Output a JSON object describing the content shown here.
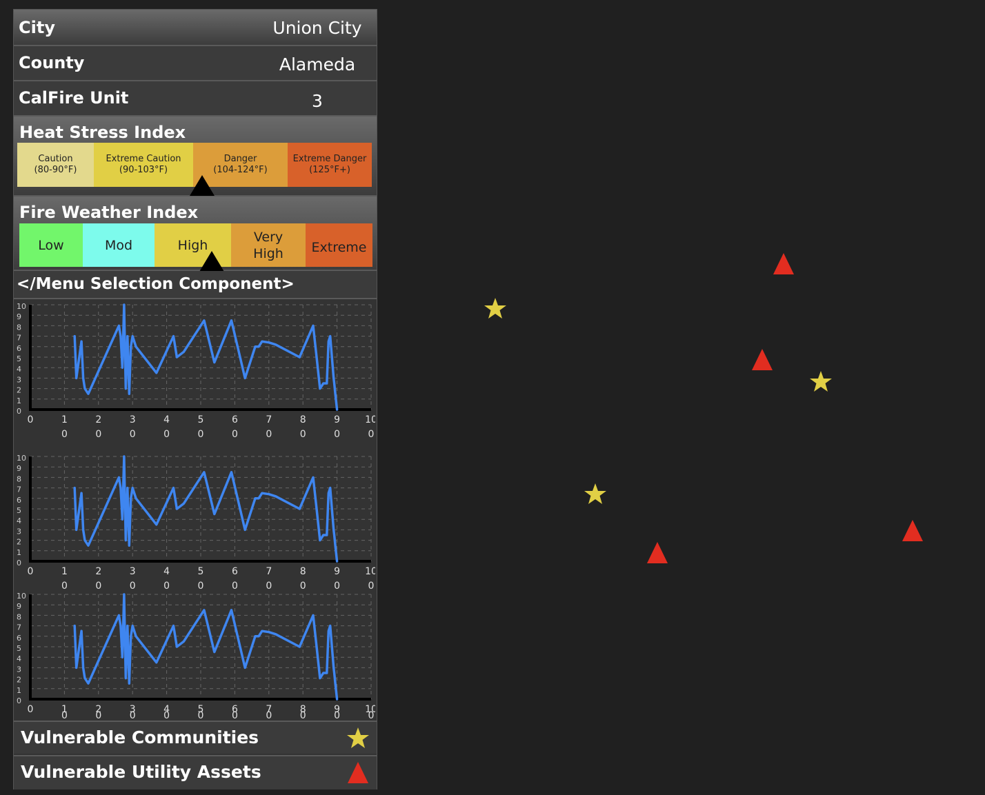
{
  "info": {
    "city_label": "City",
    "city_value": "Union City",
    "county_label": "County",
    "county_value": "Alameda",
    "unit_label": "CalFire Unit",
    "unit_value": "3"
  },
  "heat_stress": {
    "title": "Heat Stress Index",
    "segments": [
      {
        "label": "Caution",
        "range": "(80-90°F)",
        "color": "#e3d98d"
      },
      {
        "label": "Extreme Caution",
        "range": "(90-103°F)",
        "color": "#e1cf45"
      },
      {
        "label": "Danger",
        "range": "(104-124°F)",
        "color": "#dc9d3a"
      },
      {
        "label": "Extreme Danger",
        "range": "(125°F+)",
        "color": "#d8612a"
      }
    ],
    "indicator_level": "Danger"
  },
  "fire_weather": {
    "title": "Fire Weather Index",
    "segments": [
      {
        "label": "Low",
        "color": "#72f66b"
      },
      {
        "label": "Mod",
        "color": "#7dfbec"
      },
      {
        "label": "High",
        "color": "#e1cf45"
      },
      {
        "label": "Very High",
        "color": "#dc9d3a"
      },
      {
        "label": "Extreme",
        "color": "#d8612a"
      }
    ],
    "indicator_level": "High"
  },
  "menu": {
    "title": "</Menu Selection Component>"
  },
  "chart_data": [
    {
      "type": "line",
      "x": [
        13,
        13.5,
        15,
        15.5,
        16,
        17,
        26,
        26.5,
        27,
        27.5,
        28,
        28.5,
        29,
        29.5,
        30,
        31,
        37,
        42,
        43,
        45,
        51,
        54,
        59,
        63,
        66,
        67,
        68,
        70,
        72,
        79,
        83,
        84,
        85,
        86,
        87,
        87.5,
        88,
        89,
        89.2,
        89.5,
        90
      ],
      "y": [
        70,
        30,
        65,
        30,
        20,
        15,
        80,
        70,
        40,
        100,
        20,
        70,
        15,
        60,
        70,
        60,
        35,
        70,
        50,
        55,
        85,
        45,
        85,
        30,
        60,
        60,
        65,
        64,
        62,
        50,
        80,
        50,
        20,
        25,
        25,
        65,
        70,
        30,
        25,
        15,
        0
      ],
      "xlim": [
        0,
        100
      ],
      "ylim": [
        0,
        100
      ],
      "color": "#3f86f0",
      "grid": true
    },
    {
      "type": "line",
      "x": [
        13,
        13.5,
        15,
        15.5,
        16,
        17,
        26,
        26.5,
        27,
        27.5,
        28,
        28.5,
        29,
        29.5,
        30,
        31,
        37,
        42,
        43,
        45,
        51,
        54,
        59,
        63,
        66,
        67,
        68,
        70,
        72,
        79,
        83,
        84,
        85,
        86,
        87,
        87.5,
        88,
        89,
        89.2,
        89.5,
        90
      ],
      "y": [
        70,
        30,
        65,
        30,
        20,
        15,
        80,
        70,
        40,
        100,
        20,
        70,
        15,
        60,
        70,
        60,
        35,
        70,
        50,
        55,
        85,
        45,
        85,
        30,
        60,
        60,
        65,
        64,
        62,
        50,
        80,
        50,
        20,
        25,
        25,
        65,
        70,
        30,
        25,
        15,
        0
      ],
      "xlim": [
        0,
        100
      ],
      "ylim": [
        0,
        100
      ],
      "color": "#3f86f0",
      "grid": true
    },
    {
      "type": "line",
      "x": [
        13,
        13.5,
        15,
        15.5,
        16,
        17,
        26,
        26.5,
        27,
        27.5,
        28,
        28.5,
        29,
        29.5,
        30,
        31,
        37,
        42,
        43,
        45,
        51,
        54,
        59,
        63,
        66,
        67,
        68,
        70,
        72,
        79,
        83,
        84,
        85,
        86,
        87,
        87.5,
        88,
        89,
        89.2,
        89.5,
        90
      ],
      "y": [
        70,
        30,
        65,
        30,
        20,
        15,
        80,
        70,
        40,
        100,
        20,
        70,
        15,
        60,
        70,
        60,
        35,
        70,
        50,
        55,
        85,
        45,
        85,
        30,
        60,
        60,
        65,
        64,
        62,
        50,
        80,
        50,
        20,
        25,
        25,
        65,
        70,
        30,
        25,
        15,
        0
      ],
      "xlim": [
        0,
        100
      ],
      "ylim": [
        0,
        100
      ],
      "color": "#3f86f0",
      "grid": true
    }
  ],
  "chart_ticks": {
    "x": [
      [
        "0",
        ""
      ],
      [
        "1",
        "0"
      ],
      [
        "2",
        "0"
      ],
      [
        "3",
        "0"
      ],
      [
        "4",
        "0"
      ],
      [
        "5",
        "0"
      ],
      [
        "6",
        "0"
      ],
      [
        "7",
        "0"
      ],
      [
        "8",
        "0"
      ],
      [
        "9",
        "0"
      ],
      [
        "10",
        "0"
      ]
    ],
    "y": [
      "10",
      "9",
      "8",
      "7",
      "6",
      "5",
      "4",
      "3",
      "2",
      "1",
      "0"
    ]
  },
  "legend": {
    "communities_label": "Vulnerable Communities",
    "communities_icon": "star-icon",
    "communities_color": "#e1cf45",
    "assets_label": "Vulnerable Utility Assets",
    "assets_icon": "triangle-icon",
    "assets_color": "#e22d20"
  },
  "map_markers": [
    {
      "kind": "community",
      "icon": "star-icon"
    },
    {
      "kind": "community",
      "icon": "star-icon"
    },
    {
      "kind": "community",
      "icon": "star-icon"
    },
    {
      "kind": "asset",
      "icon": "triangle-icon"
    },
    {
      "kind": "asset",
      "icon": "triangle-icon"
    },
    {
      "kind": "asset",
      "icon": "triangle-icon"
    },
    {
      "kind": "asset",
      "icon": "triangle-icon"
    }
  ]
}
